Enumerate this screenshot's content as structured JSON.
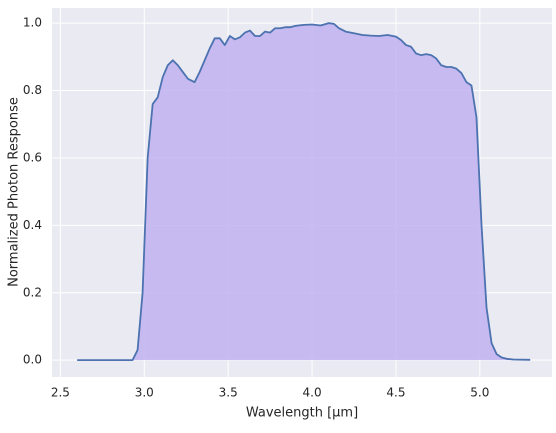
{
  "chart_data": {
    "type": "area",
    "xlabel": "Wavelength [μm]",
    "ylabel": "Normalized Photon Response",
    "x": [
      2.6,
      2.9,
      2.93,
      2.96,
      2.99,
      3.02,
      3.05,
      3.08,
      3.11,
      3.14,
      3.17,
      3.2,
      3.23,
      3.26,
      3.3,
      3.33,
      3.36,
      3.39,
      3.42,
      3.45,
      3.48,
      3.51,
      3.54,
      3.57,
      3.6,
      3.63,
      3.66,
      3.69,
      3.72,
      3.75,
      3.78,
      3.81,
      3.84,
      3.87,
      3.9,
      3.95,
      4.0,
      4.05,
      4.1,
      4.13,
      4.16,
      4.2,
      4.25,
      4.3,
      4.35,
      4.4,
      4.45,
      4.5,
      4.53,
      4.56,
      4.59,
      4.62,
      4.65,
      4.68,
      4.71,
      4.74,
      4.77,
      4.8,
      4.83,
      4.86,
      4.89,
      4.92,
      4.95,
      4.98,
      5.01,
      5.04,
      5.07,
      5.1,
      5.13,
      5.16,
      5.2,
      5.3
    ],
    "series": [
      {
        "color": "#4c72b0",
        "fill": "#c0b2f0",
        "values": [
          0,
          0,
          0,
          0.03,
          0.2,
          0.6,
          0.76,
          0.78,
          0.84,
          0.875,
          0.89,
          0.875,
          0.855,
          0.835,
          0.825,
          0.855,
          0.89,
          0.925,
          0.955,
          0.955,
          0.935,
          0.962,
          0.952,
          0.958,
          0.972,
          0.978,
          0.962,
          0.962,
          0.975,
          0.972,
          0.985,
          0.985,
          0.988,
          0.988,
          0.992,
          0.995,
          0.996,
          0.993,
          1.0,
          0.998,
          0.985,
          0.975,
          0.97,
          0.965,
          0.963,
          0.962,
          0.965,
          0.96,
          0.95,
          0.935,
          0.93,
          0.91,
          0.905,
          0.908,
          0.905,
          0.895,
          0.875,
          0.87,
          0.87,
          0.865,
          0.852,
          0.825,
          0.815,
          0.72,
          0.4,
          0.155,
          0.05,
          0.018,
          0.008,
          0.004,
          0.002,
          0.001
        ]
      }
    ],
    "xlim": [
      2.45,
      5.43
    ],
    "ylim": [
      -0.05,
      1.045
    ],
    "xticks": [
      2.5,
      {
        "value": 3,
        "label": "3.0"
      },
      3.5,
      {
        "value": 4,
        "label": "4.0"
      },
      4.5,
      {
        "value": 5,
        "label": "5.0"
      }
    ],
    "yticks": [
      {
        "value": 0,
        "label": "0.0"
      },
      0.2,
      0.4,
      0.6,
      0.8,
      {
        "value": 1,
        "label": "1.0"
      }
    ],
    "grid": true
  }
}
